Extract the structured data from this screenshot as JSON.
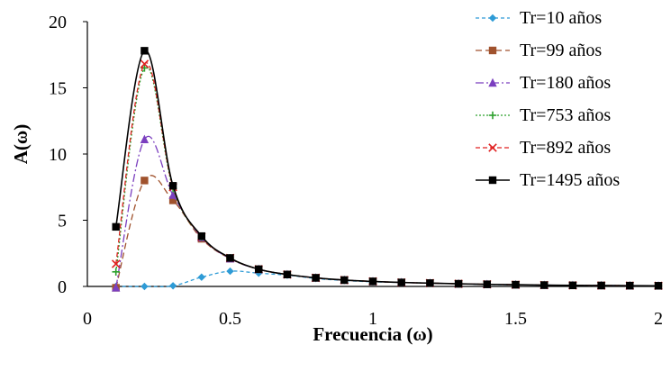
{
  "chart_data": {
    "type": "line",
    "xlabel": "Frecuencia (ω)",
    "ylabel": "A(ω)",
    "xlim": [
      0,
      2
    ],
    "ylim": [
      0,
      20
    ],
    "xticks": [
      0,
      0.5,
      1,
      1.5,
      2
    ],
    "xtick_labels": [
      "0",
      "0.5",
      "1",
      "1.5",
      "2"
    ],
    "yticks": [
      0,
      5,
      10,
      15,
      20
    ],
    "ytick_labels": [
      "0",
      "5",
      "10",
      "15",
      "20"
    ],
    "grid": false,
    "legend_position": "top-right",
    "series": [
      {
        "name": "Tr=10 años",
        "color": "#2e9bd6",
        "dash": "4,3",
        "marker": "diamond",
        "x": [
          0.1,
          0.2,
          0.3,
          0.4,
          0.5,
          0.6,
          0.7,
          0.8,
          0.9,
          1.0,
          1.1,
          1.2,
          1.3,
          1.4,
          1.5,
          1.6,
          1.7,
          1.8,
          1.9,
          2.0
        ],
        "y": [
          0.0,
          0.0,
          0.05,
          0.7,
          1.15,
          1.0,
          0.85,
          0.6,
          0.45,
          0.35,
          0.3,
          0.25,
          0.2,
          0.15,
          0.12,
          0.1,
          0.08,
          0.07,
          0.06,
          0.05
        ]
      },
      {
        "name": "Tr=99 años",
        "color": "#a0522d",
        "dash": "7,4",
        "marker": "square",
        "x": [
          0.1,
          0.2,
          0.3,
          0.4,
          0.5,
          0.6,
          0.7,
          0.8,
          0.9,
          1.0,
          1.1,
          1.2,
          1.3,
          1.4,
          1.5,
          1.6,
          1.7,
          1.8,
          1.9,
          2.0
        ],
        "y": [
          -0.1,
          8.0,
          6.5,
          3.6,
          2.1,
          1.3,
          0.9,
          0.65,
          0.48,
          0.38,
          0.3,
          0.25,
          0.2,
          0.16,
          0.13,
          0.1,
          0.08,
          0.07,
          0.06,
          0.05
        ]
      },
      {
        "name": "Tr=180 años",
        "color": "#7b3fbf",
        "dash": "9,3,2,3",
        "marker": "triangle",
        "x": [
          0.1,
          0.2,
          0.3,
          0.4,
          0.5,
          0.6,
          0.7,
          0.8,
          0.9,
          1.0,
          1.1,
          1.2,
          1.3,
          1.4,
          1.5,
          1.6,
          1.7,
          1.8,
          1.9,
          2.0
        ],
        "y": [
          -0.1,
          11.1,
          6.9,
          3.7,
          2.1,
          1.3,
          0.9,
          0.65,
          0.48,
          0.38,
          0.3,
          0.25,
          0.2,
          0.16,
          0.13,
          0.1,
          0.08,
          0.07,
          0.06,
          0.05
        ]
      },
      {
        "name": "Tr=753 años",
        "color": "#2ca02c",
        "dash": "2,2",
        "marker": "plus",
        "x": [
          0.1,
          0.2,
          0.3,
          0.4,
          0.5,
          0.6,
          0.7,
          0.8,
          0.9,
          1.0,
          1.1,
          1.2,
          1.3,
          1.4,
          1.5,
          1.6,
          1.7,
          1.8,
          1.9,
          2.0
        ],
        "y": [
          1.1,
          16.5,
          7.4,
          3.75,
          2.15,
          1.3,
          0.9,
          0.65,
          0.48,
          0.38,
          0.3,
          0.25,
          0.2,
          0.16,
          0.13,
          0.1,
          0.08,
          0.07,
          0.06,
          0.05
        ]
      },
      {
        "name": "Tr=892 años",
        "color": "#e02020",
        "dash": "5,3",
        "marker": "x",
        "x": [
          0.1,
          0.2,
          0.3,
          0.4,
          0.5,
          0.6,
          0.7,
          0.8,
          0.9,
          1.0,
          1.1,
          1.2,
          1.3,
          1.4,
          1.5,
          1.6,
          1.7,
          1.8,
          1.9,
          2.0
        ],
        "y": [
          1.7,
          16.8,
          7.5,
          3.75,
          2.15,
          1.3,
          0.9,
          0.65,
          0.48,
          0.38,
          0.3,
          0.25,
          0.2,
          0.16,
          0.13,
          0.1,
          0.08,
          0.07,
          0.06,
          0.05
        ]
      },
      {
        "name": "Tr=1495 años",
        "color": "#000000",
        "dash": "",
        "marker": "square",
        "x": [
          0.1,
          0.2,
          0.3,
          0.4,
          0.5,
          0.6,
          0.7,
          0.8,
          0.9,
          1.0,
          1.1,
          1.2,
          1.3,
          1.4,
          1.5,
          1.6,
          1.7,
          1.8,
          1.9,
          2.0
        ],
        "y": [
          4.5,
          17.8,
          7.6,
          3.8,
          2.15,
          1.3,
          0.9,
          0.65,
          0.48,
          0.38,
          0.3,
          0.25,
          0.2,
          0.16,
          0.13,
          0.1,
          0.08,
          0.07,
          0.06,
          0.05
        ]
      }
    ]
  }
}
